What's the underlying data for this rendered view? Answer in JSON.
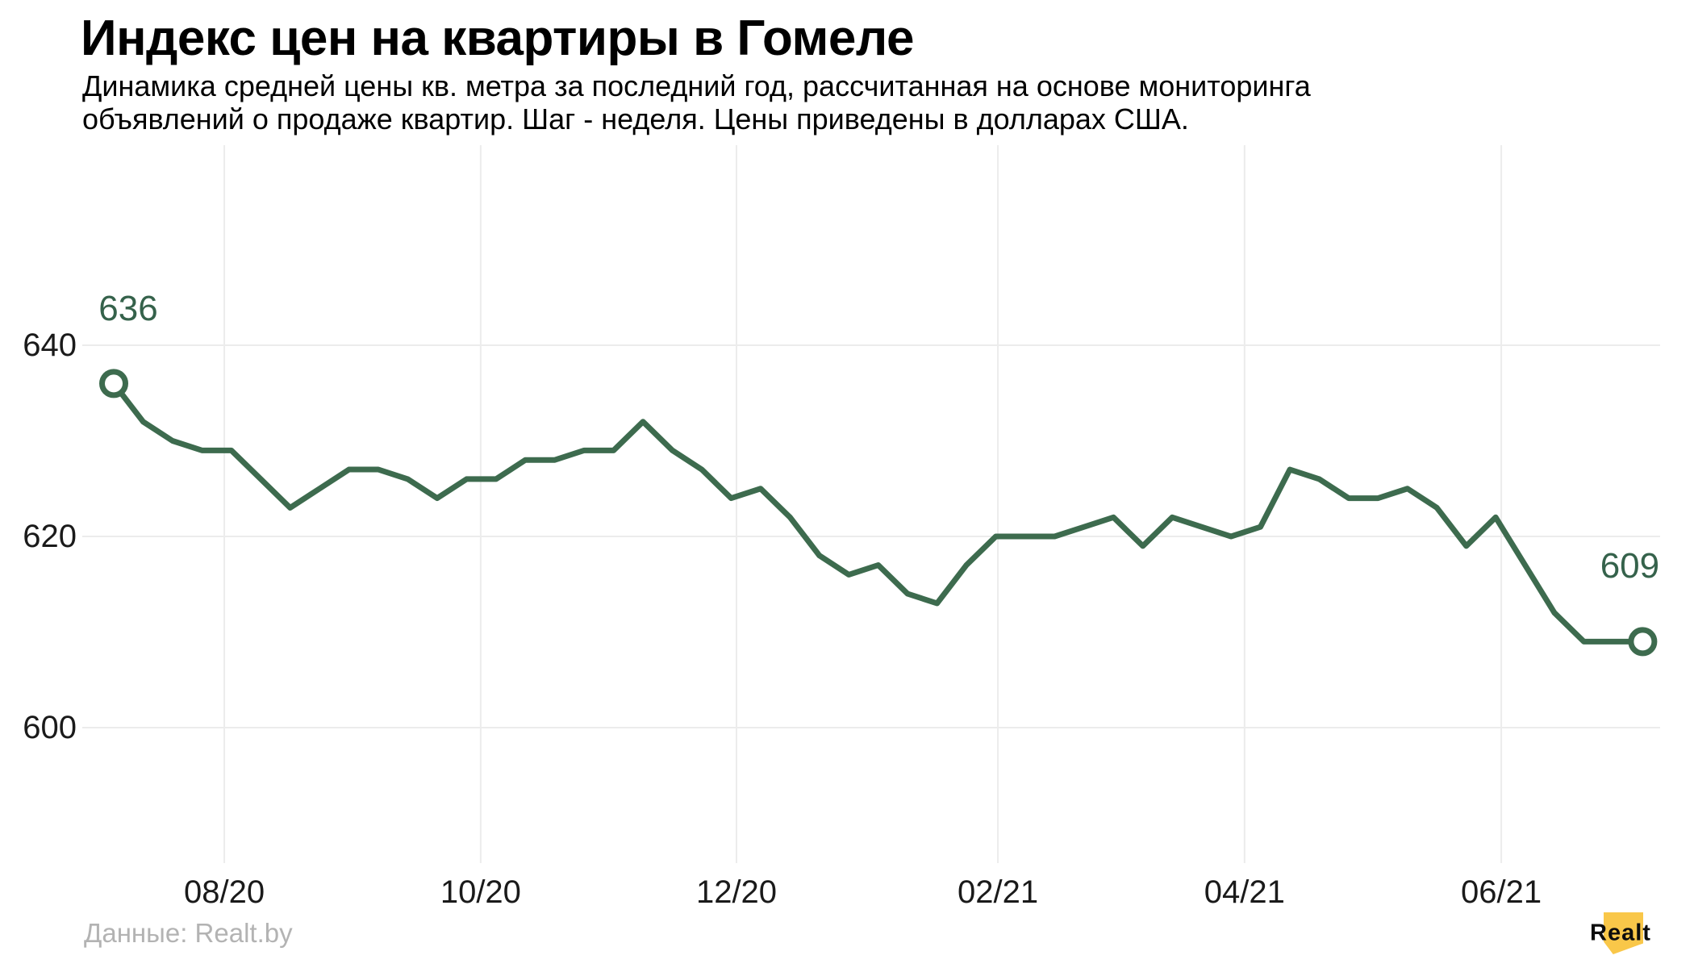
{
  "header": {
    "title": "Индекс цен на квартиры в Гомеле",
    "subtitle_line1": "Динамика средней цены кв. метра за последний год, рассчитанная на основе мониторинга",
    "subtitle_line2": "объявлений о продаже квартир. Шаг - неделя. Цены приведены в долларах США."
  },
  "footer": {
    "source_label": "Данные: Realt.by"
  },
  "logo": {
    "text": "Realt",
    "bubble_color": "#F9C749"
  },
  "chart_data": {
    "type": "line",
    "title": "Индекс цен на квартиры в Гомеле",
    "x_step": "week",
    "values": [
      636,
      632,
      630,
      629,
      629,
      626,
      623,
      625,
      627,
      627,
      626,
      624,
      626,
      626,
      628,
      628,
      629,
      629,
      632,
      629,
      627,
      624,
      625,
      622,
      618,
      616,
      617,
      614,
      613,
      617,
      620,
      620,
      620,
      621,
      622,
      619,
      622,
      621,
      620,
      621,
      627,
      626,
      624,
      624,
      625,
      623,
      619,
      622,
      617,
      612,
      609,
      609,
      609
    ],
    "x_tick_labels": [
      "08/20",
      "10/20",
      "12/20",
      "02/21",
      "04/21",
      "06/21"
    ],
    "x_tick_week_positions": [
      3.76,
      12.48,
      21.18,
      30.07,
      38.46,
      47.19
    ],
    "y_ticks": [
      640,
      620,
      600
    ],
    "ylim": [
      586,
      661
    ],
    "grid": true,
    "legend": "none",
    "first_point_label": "636",
    "last_point_label": "609",
    "line_color": "#3D6B4E",
    "point_label_color": "#35624B",
    "grid_color": "#ececec",
    "tick_label_color": "#1a1a1a"
  }
}
